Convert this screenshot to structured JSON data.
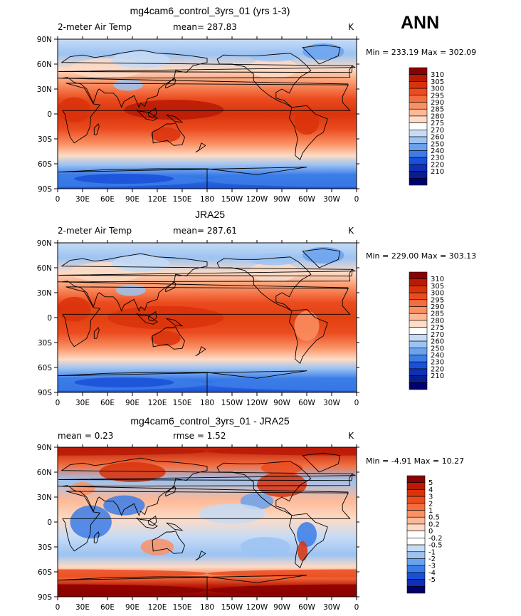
{
  "season": "ANN",
  "chart_data": [
    {
      "type": "heatmap",
      "title": "mg4cam6_control_3yrs_01 (yrs 1-3)",
      "left_label": "2-meter Air Temp",
      "center_label": "mean= 287.83",
      "right_label": "K",
      "stats": "Min = 233.19 Max = 302.09",
      "xticks": [
        "0",
        "30E",
        "60E",
        "90E",
        "120E",
        "150E",
        "180",
        "150W",
        "120W",
        "90W",
        "60W",
        "30W",
        "0"
      ],
      "yticks": [
        "90N",
        "60N",
        "30N",
        "0",
        "30S",
        "60S",
        "90S"
      ],
      "xlim": [
        0,
        360
      ],
      "ylim": [
        -90,
        90
      ],
      "colorbar": {
        "labels": [
          "310",
          "305",
          "300",
          "295",
          "290",
          "285",
          "280",
          "275",
          "270",
          "260",
          "250",
          "240",
          "230",
          "220",
          "210"
        ],
        "colors": [
          "#8b0000",
          "#b81a06",
          "#d9330c",
          "#eb4b1f",
          "#f46d3e",
          "#fa9164",
          "#fdb896",
          "#fddbc5",
          "#ffffff",
          "#c6dbf6",
          "#9cc3f2",
          "#6aa2ee",
          "#3b7ce8",
          "#1a50d8",
          "#0f2fb4",
          "#081d8e",
          "#00006e"
        ]
      }
    },
    {
      "type": "heatmap",
      "title": "JRA25",
      "left_label": "2-meter Air Temp",
      "center_label": "mean= 287.61",
      "right_label": "K",
      "stats": "Min = 229.00 Max = 303.13",
      "xticks": [
        "0",
        "30E",
        "60E",
        "90E",
        "120E",
        "150E",
        "180",
        "150W",
        "120W",
        "90W",
        "60W",
        "30W",
        "0"
      ],
      "yticks": [
        "90N",
        "60N",
        "30N",
        "0",
        "30S",
        "60S",
        "90S"
      ],
      "xlim": [
        0,
        360
      ],
      "ylim": [
        -90,
        90
      ],
      "colorbar": {
        "labels": [
          "310",
          "305",
          "300",
          "295",
          "290",
          "285",
          "280",
          "275",
          "270",
          "260",
          "250",
          "240",
          "230",
          "220",
          "210"
        ],
        "colors": [
          "#8b0000",
          "#b81a06",
          "#d9330c",
          "#eb4b1f",
          "#f46d3e",
          "#fa9164",
          "#fdb896",
          "#fddbc5",
          "#ffffff",
          "#c6dbf6",
          "#9cc3f2",
          "#6aa2ee",
          "#3b7ce8",
          "#1a50d8",
          "#0f2fb4",
          "#081d8e",
          "#00006e"
        ]
      }
    },
    {
      "type": "heatmap",
      "title": "mg4cam6_control_3yrs_01 - JRA25",
      "left_label": "mean =      0.23",
      "center_label": "rmse =      1.52",
      "right_label": "K",
      "stats": "Min =   -4.91 Max =   10.27",
      "xticks": [
        "0",
        "30E",
        "60E",
        "90E",
        "120E",
        "150E",
        "180",
        "150W",
        "120W",
        "90W",
        "60W",
        "30W",
        "0"
      ],
      "yticks": [
        "90N",
        "60N",
        "30N",
        "0",
        "30S",
        "60S",
        "90S"
      ],
      "xlim": [
        0,
        360
      ],
      "ylim": [
        -90,
        90
      ],
      "colorbar": {
        "labels": [
          "5",
          "4",
          "3",
          "2",
          "1",
          "0.5",
          "0.2",
          "0",
          "-0.2",
          "-0.5",
          "-1",
          "-2",
          "-3",
          "-4",
          "-5"
        ],
        "colors": [
          "#8b0000",
          "#b81a06",
          "#d9330c",
          "#eb4b1f",
          "#f46d3e",
          "#fa9164",
          "#fdb896",
          "#fddbc5",
          "#ffffff",
          "#ffffff",
          "#c6dbf6",
          "#9cc3f2",
          "#6aa2ee",
          "#3b7ce8",
          "#1a50d8",
          "#0f2fb4",
          "#00006e"
        ]
      }
    }
  ]
}
